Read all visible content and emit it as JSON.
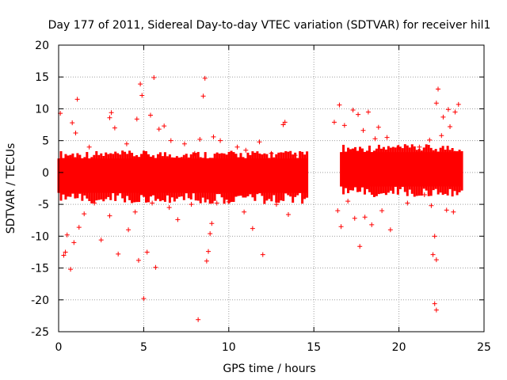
{
  "chart_data": {
    "type": "scatter",
    "title": "Day 177 of 2011, Sidereal Day-to-day VTEC variation (SDTVAR) for receiver hil1",
    "xlabel": "GPS time / hours",
    "ylabel": "SDTVAR / TECUs",
    "xlim": [
      0,
      25
    ],
    "ylim": [
      -25,
      20
    ],
    "xticks": [
      0,
      5,
      10,
      15,
      20,
      25
    ],
    "yticks": [
      -25,
      -20,
      -15,
      -10,
      -5,
      0,
      5,
      10,
      15,
      20
    ],
    "grid": true,
    "marker": "+",
    "color": "#ff0000",
    "bands": [
      {
        "x": [
          0.0,
          14.6
        ],
        "y_low": -3.2,
        "y_high": 2.2
      },
      {
        "x": [
          16.6,
          23.7
        ],
        "y_low": -2.2,
        "y_high": 3.2
      }
    ],
    "series": [
      {
        "name": "SDTVAR",
        "points": [
          [
            0.1,
            9.3
          ],
          [
            0.3,
            -13.0
          ],
          [
            0.4,
            -12.5
          ],
          [
            0.5,
            -9.8
          ],
          [
            0.7,
            -15.2
          ],
          [
            0.8,
            7.8
          ],
          [
            0.9,
            -11.0
          ],
          [
            1.1,
            11.5
          ],
          [
            1.2,
            -8.6
          ],
          [
            1.0,
            6.2
          ],
          [
            1.5,
            -6.5
          ],
          [
            1.8,
            4.0
          ],
          [
            2.1,
            -4.8
          ],
          [
            2.5,
            -10.6
          ],
          [
            3.0,
            -6.8
          ],
          [
            3.0,
            8.6
          ],
          [
            3.1,
            9.4
          ],
          [
            3.5,
            -12.8
          ],
          [
            3.3,
            7.0
          ],
          [
            4.0,
            4.5
          ],
          [
            4.1,
            -9.0
          ],
          [
            4.5,
            -6.2
          ],
          [
            4.6,
            8.4
          ],
          [
            4.7,
            -13.8
          ],
          [
            4.8,
            13.9
          ],
          [
            4.9,
            12.1
          ],
          [
            5.0,
            -19.8
          ],
          [
            5.2,
            -12.5
          ],
          [
            5.4,
            9.0
          ],
          [
            5.5,
            -4.8
          ],
          [
            5.6,
            14.9
          ],
          [
            5.7,
            -14.9
          ],
          [
            5.9,
            6.8
          ],
          [
            6.2,
            7.3
          ],
          [
            6.5,
            -5.5
          ],
          [
            6.6,
            5.0
          ],
          [
            7.0,
            -7.4
          ],
          [
            7.4,
            4.5
          ],
          [
            7.8,
            -5.0
          ],
          [
            8.0,
            3.0
          ],
          [
            8.2,
            -23.1
          ],
          [
            8.3,
            5.2
          ],
          [
            8.5,
            12.0
          ],
          [
            8.6,
            14.8
          ],
          [
            8.7,
            -13.9
          ],
          [
            8.8,
            -12.4
          ],
          [
            8.9,
            -9.6
          ],
          [
            9.0,
            -8.0
          ],
          [
            9.1,
            5.6
          ],
          [
            9.3,
            -4.8
          ],
          [
            9.5,
            5.0
          ],
          [
            10.0,
            -4.6
          ],
          [
            10.5,
            4.0
          ],
          [
            10.9,
            -6.2
          ],
          [
            11.0,
            3.5
          ],
          [
            11.4,
            -8.8
          ],
          [
            11.8,
            4.8
          ],
          [
            12.0,
            -12.9
          ],
          [
            12.5,
            3.0
          ],
          [
            12.8,
            -5.0
          ],
          [
            13.2,
            7.5
          ],
          [
            13.3,
            7.9
          ],
          [
            13.5,
            -6.6
          ],
          [
            13.9,
            2.7
          ],
          [
            14.2,
            -2.0
          ],
          [
            16.2,
            7.9
          ],
          [
            16.4,
            -6.0
          ],
          [
            16.5,
            10.6
          ],
          [
            16.6,
            -8.5
          ],
          [
            16.8,
            7.4
          ],
          [
            17.0,
            -4.5
          ],
          [
            17.3,
            9.8
          ],
          [
            17.4,
            -7.2
          ],
          [
            17.6,
            9.1
          ],
          [
            17.7,
            -11.6
          ],
          [
            17.9,
            6.6
          ],
          [
            18.0,
            -7.0
          ],
          [
            18.2,
            9.5
          ],
          [
            18.4,
            -8.2
          ],
          [
            18.6,
            5.3
          ],
          [
            18.8,
            7.1
          ],
          [
            19.0,
            -6.0
          ],
          [
            19.3,
            5.5
          ],
          [
            19.5,
            -9.0
          ],
          [
            20.0,
            4.0
          ],
          [
            20.5,
            -4.8
          ],
          [
            21.2,
            4.0
          ],
          [
            21.5,
            -3.5
          ],
          [
            21.8,
            5.1
          ],
          [
            22.0,
            -12.9
          ],
          [
            22.1,
            -10.0
          ],
          [
            22.2,
            -13.7
          ],
          [
            22.2,
            10.9
          ],
          [
            22.3,
            13.1
          ],
          [
            22.1,
            -20.6
          ],
          [
            22.2,
            -21.6
          ],
          [
            22.5,
            5.8
          ],
          [
            22.6,
            8.7
          ],
          [
            22.8,
            -5.9
          ],
          [
            23.0,
            7.2
          ],
          [
            23.2,
            -6.2
          ],
          [
            23.5,
            10.7
          ],
          [
            23.3,
            9.5
          ],
          [
            22.9,
            9.9
          ],
          [
            21.9,
            -5.2
          ]
        ]
      }
    ]
  }
}
